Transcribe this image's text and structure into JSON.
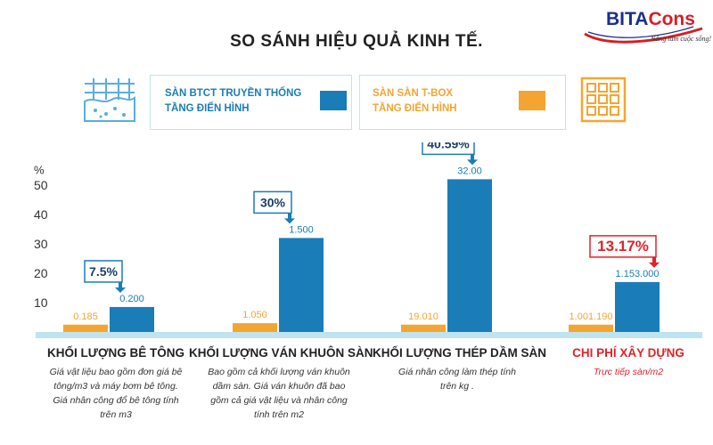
{
  "title": "SO SÁNH HIỆU QUẢ KINH TẾ.",
  "logo": {
    "text_blue": "BITA",
    "text_red": "Cons",
    "slogan": "Nâng tầm cuộc sống!"
  },
  "legend": {
    "series1_label_line1": "SÀN BTCT TRUYỀN THỐNG",
    "series1_label_line2": "TẦNG ĐIỂN HÌNH",
    "series2_label_line1": "SÀN SÀN T-BOX",
    "series2_label_line2": "TẦNG ĐIỂN HÌNH"
  },
  "colors": {
    "blue": "#1a7db8",
    "orange": "#f4a531",
    "red": "#e0232c",
    "light_blue": "#bfe4f1",
    "icon_orange": "#f4a531",
    "icon_blue": "#5aaedc"
  },
  "icons": [
    "concrete-slab-icon",
    "waffle-grid-icon"
  ],
  "descriptions": {
    "concrete": [
      "Giá vật liệu bao gồm đơn giá bê",
      "tông/m3 và máy bơm bê tông.",
      "Giá nhân công đổ bê tông tính",
      "trên m3"
    ],
    "formwork": [
      "Bao gồm cả khối lượng ván khuôn",
      "dầm sàn. Giá ván khuôn đã bao",
      "gồm cả giá vật liệu và nhân công",
      "tính trên m2"
    ],
    "steel": [
      "Giá nhân công làm thép tính",
      "trên kg ."
    ],
    "cost": [
      "Trực tiếp sàn/m2"
    ]
  },
  "chart_data": {
    "type": "bar",
    "ylabel": "%",
    "yticks": [
      10,
      20,
      30,
      40,
      50
    ],
    "ylim": [
      0,
      55
    ],
    "categories": [
      "KHỐI LƯỢNG BÊ TÔNG",
      "KHỐI LƯỢNG VÁN KHUÔN SÀN",
      "KHỐI LƯỢNG THÉP DẦM SÀN",
      "CHI PHÍ XÂY DỰNG"
    ],
    "series": [
      {
        "name": "SÀN SÀN T-BOX TẦNG ĐIỂN HÌNH",
        "values": [
          2.5,
          3,
          2.5,
          2.5
        ],
        "labels": [
          "0.185",
          "1.050",
          "19.010",
          "1.001.190"
        ]
      },
      {
        "name": "SÀN BTCT TRUYỀN THỐNG TẦNG ĐIỂN HÌNH",
        "values": [
          8.5,
          32,
          52,
          17
        ],
        "labels": [
          "0.200",
          "1.500",
          "32.00",
          "1.153.000"
        ]
      }
    ],
    "savings": [
      "7.5%",
      "30%",
      "40.59%",
      "13.17%"
    ],
    "grid": false
  }
}
